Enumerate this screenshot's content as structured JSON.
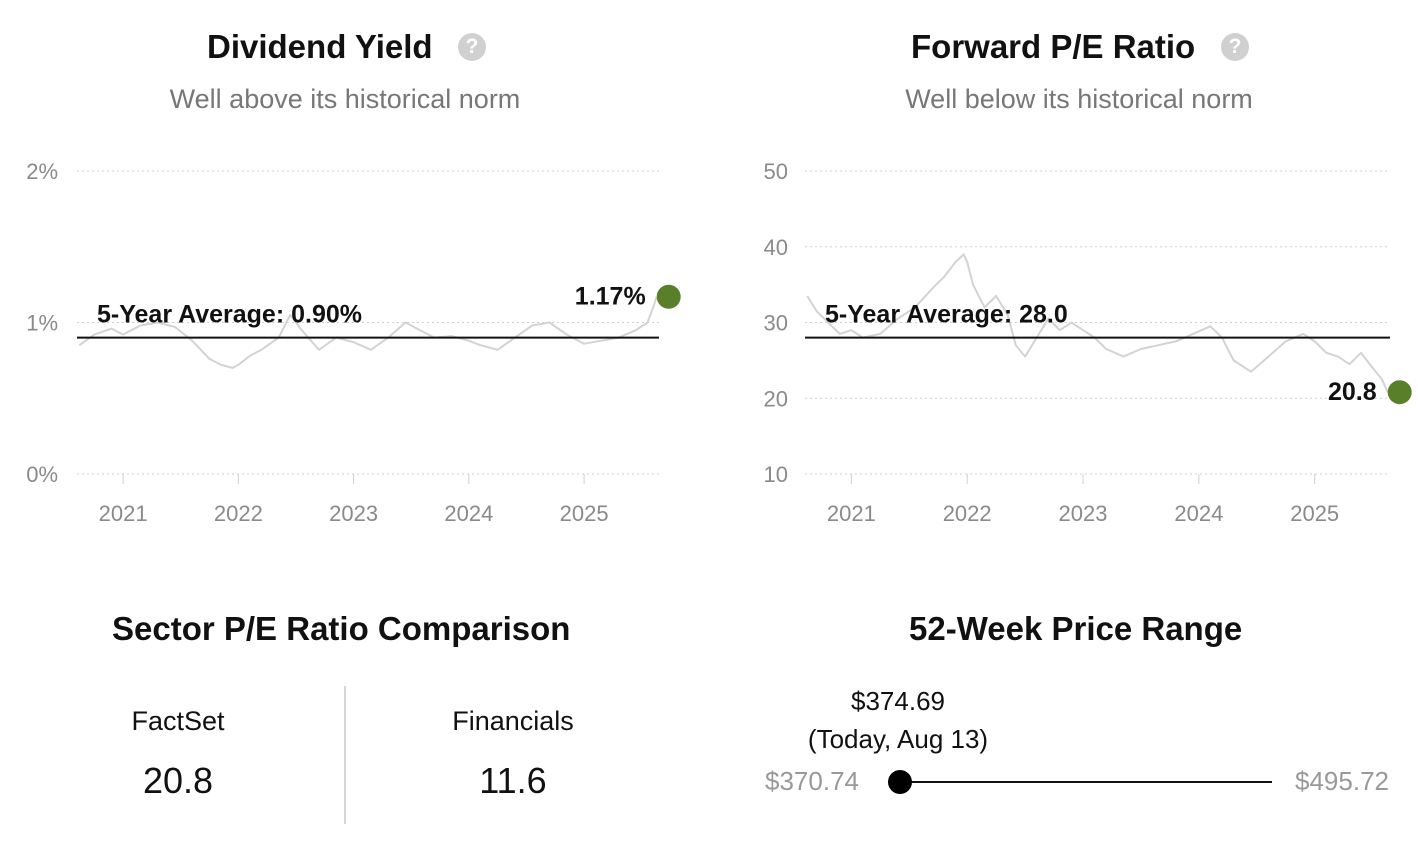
{
  "dividend": {
    "title": "Dividend Yield",
    "subtitle": "Well above its historical norm",
    "help_icon": "question-circle-icon"
  },
  "pe": {
    "title": "Forward P/E Ratio",
    "subtitle": "Well below its historical norm",
    "help_icon": "question-circle-icon"
  },
  "colors": {
    "accent_green": "#5a7f2b",
    "line_gray": "#d3d3d3",
    "axis_gray": "#8a8a8a"
  },
  "chart_data": [
    {
      "type": "line",
      "title": "Dividend Yield",
      "y_ticks": [
        "0%",
        "1%",
        "2%"
      ],
      "ylim": [
        0,
        2
      ],
      "x_ticks": [
        "2021",
        "2022",
        "2023",
        "2024",
        "2025"
      ],
      "xlim": [
        2020.6,
        2025.65
      ],
      "grid": true,
      "average": {
        "label": "5-Year Average: 0.90%",
        "value": 0.9
      },
      "latest": {
        "label": "1.17%",
        "value": 1.17
      },
      "series": [
        {
          "x": [
            2020.62,
            2020.75,
            2020.9,
            2021.0,
            2021.15,
            2021.3,
            2021.45,
            2021.6,
            2021.75,
            2021.85,
            2021.95,
            2022.0,
            2022.1,
            2022.2,
            2022.35,
            2022.45,
            2022.55,
            2022.7,
            2022.85,
            2023.0,
            2023.15,
            2023.3,
            2023.45,
            2023.55,
            2023.7,
            2023.85,
            2024.0,
            2024.1,
            2024.25,
            2024.4,
            2024.55,
            2024.7,
            2024.85,
            2025.0,
            2025.15,
            2025.3,
            2025.45,
            2025.55,
            2025.6,
            2025.63
          ],
          "values": [
            0.85,
            0.92,
            0.96,
            0.92,
            0.98,
            1.0,
            0.97,
            0.88,
            0.76,
            0.72,
            0.7,
            0.72,
            0.78,
            0.82,
            0.9,
            1.05,
            0.95,
            0.82,
            0.9,
            0.87,
            0.82,
            0.9,
            1.0,
            0.96,
            0.9,
            0.91,
            0.88,
            0.85,
            0.82,
            0.9,
            0.98,
            1.0,
            0.92,
            0.86,
            0.88,
            0.9,
            0.95,
            1.0,
            1.1,
            1.17
          ]
        }
      ]
    },
    {
      "type": "line",
      "title": "Forward P/E Ratio",
      "y_ticks": [
        "10",
        "20",
        "30",
        "40",
        "50"
      ],
      "ylim": [
        10,
        50
      ],
      "x_ticks": [
        "2021",
        "2022",
        "2023",
        "2024",
        "2025"
      ],
      "xlim": [
        2020.6,
        2025.65
      ],
      "grid": true,
      "average": {
        "label": "5-Year Average: 28.0",
        "value": 28.0
      },
      "latest": {
        "label": "20.8",
        "value": 20.8
      },
      "series": [
        {
          "x": [
            2020.62,
            2020.7,
            2020.8,
            2020.9,
            2021.0,
            2021.1,
            2021.25,
            2021.4,
            2021.55,
            2021.7,
            2021.8,
            2021.9,
            2021.97,
            2022.0,
            2022.05,
            2022.15,
            2022.25,
            2022.35,
            2022.42,
            2022.5,
            2022.6,
            2022.7,
            2022.8,
            2022.9,
            2023.0,
            2023.1,
            2023.2,
            2023.35,
            2023.5,
            2023.65,
            2023.8,
            2023.95,
            2024.1,
            2024.2,
            2024.3,
            2024.45,
            2024.6,
            2024.75,
            2024.9,
            2025.0,
            2025.1,
            2025.2,
            2025.3,
            2025.4,
            2025.5,
            2025.58,
            2025.63
          ],
          "values": [
            33.5,
            31.5,
            30.0,
            28.5,
            29.0,
            28.0,
            28.5,
            30.5,
            32.0,
            34.5,
            36.0,
            38.0,
            39.0,
            38.0,
            35.0,
            32.0,
            33.5,
            31.0,
            27.0,
            25.5,
            28.0,
            30.5,
            29.0,
            30.0,
            29.0,
            28.0,
            26.5,
            25.5,
            26.5,
            27.0,
            27.5,
            28.5,
            29.5,
            28.0,
            25.0,
            23.5,
            25.5,
            27.5,
            28.5,
            27.5,
            26.0,
            25.5,
            24.5,
            26.0,
            24.0,
            22.5,
            20.8
          ]
        }
      ]
    }
  ],
  "sector": {
    "title": "Sector P/E Ratio Comparison",
    "left_label": "FactSet",
    "left_value": "20.8",
    "right_label": "Financials",
    "right_value": "11.6"
  },
  "range": {
    "title": "52-Week Price Range",
    "current_price": "$374.69",
    "current_note": "(Today, Aug 13)",
    "low": "$370.74",
    "high": "$495.72",
    "low_value": 370.74,
    "high_value": 495.72,
    "current_value": 374.69
  }
}
